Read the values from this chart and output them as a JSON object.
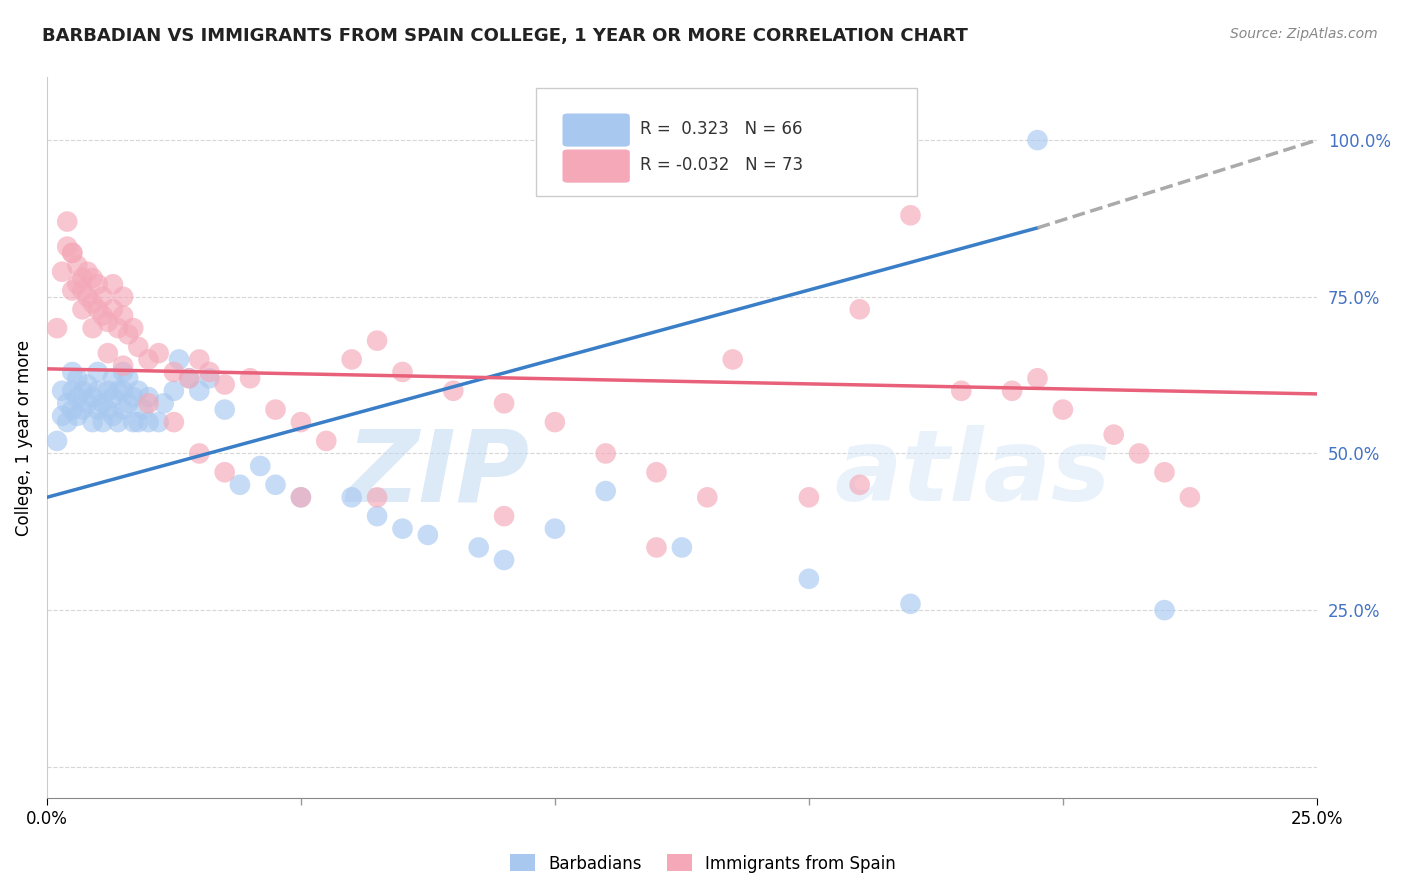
{
  "title": "BARBADIAN VS IMMIGRANTS FROM SPAIN COLLEGE, 1 YEAR OR MORE CORRELATION CHART",
  "source": "Source: ZipAtlas.com",
  "ylabel": "College, 1 year or more",
  "xlim": [
    0.0,
    0.25
  ],
  "ylim": [
    -0.05,
    1.1
  ],
  "yticks": [
    0.0,
    0.25,
    0.5,
    0.75,
    1.0
  ],
  "ytick_labels": [
    "",
    "25.0%",
    "50.0%",
    "75.0%",
    "100.0%"
  ],
  "blue_R": 0.323,
  "blue_N": 66,
  "pink_R": -0.032,
  "pink_N": 73,
  "blue_color": "#A8C8F0",
  "pink_color": "#F4A8B8",
  "blue_line_color": "#3A7EC8",
  "pink_line_color": "#E8607A",
  "dashed_color": "#AAAAAA",
  "legend_label_blue": "Barbadians",
  "legend_label_pink": "Immigrants from Spain",
  "watermark_zip": "ZIP",
  "watermark_atlas": "atlas",
  "blue_line_x0": 0.0,
  "blue_line_y0": 0.43,
  "blue_line_x1": 0.195,
  "blue_line_y1": 0.86,
  "blue_line_dash_x1": 0.25,
  "blue_line_dash_y1": 1.0,
  "pink_line_x0": 0.0,
  "pink_line_y0": 0.635,
  "pink_line_x1": 0.25,
  "pink_line_y1": 0.595,
  "blue_scatter_x": [
    0.002,
    0.003,
    0.003,
    0.004,
    0.004,
    0.005,
    0.005,
    0.005,
    0.006,
    0.006,
    0.006,
    0.007,
    0.007,
    0.008,
    0.008,
    0.009,
    0.009,
    0.01,
    0.01,
    0.01,
    0.011,
    0.011,
    0.012,
    0.012,
    0.013,
    0.013,
    0.013,
    0.014,
    0.014,
    0.015,
    0.015,
    0.015,
    0.016,
    0.016,
    0.017,
    0.017,
    0.018,
    0.018,
    0.019,
    0.02,
    0.02,
    0.022,
    0.023,
    0.025,
    0.026,
    0.028,
    0.03,
    0.032,
    0.035,
    0.038,
    0.042,
    0.045,
    0.05,
    0.06,
    0.065,
    0.07,
    0.075,
    0.085,
    0.09,
    0.1,
    0.11,
    0.125,
    0.15,
    0.17,
    0.195,
    0.22
  ],
  "blue_scatter_y": [
    0.52,
    0.56,
    0.6,
    0.55,
    0.58,
    0.57,
    0.6,
    0.63,
    0.56,
    0.59,
    0.62,
    0.57,
    0.6,
    0.58,
    0.61,
    0.55,
    0.59,
    0.57,
    0.6,
    0.63,
    0.55,
    0.58,
    0.57,
    0.6,
    0.56,
    0.59,
    0.62,
    0.55,
    0.6,
    0.57,
    0.6,
    0.63,
    0.58,
    0.62,
    0.55,
    0.59,
    0.55,
    0.6,
    0.57,
    0.55,
    0.59,
    0.55,
    0.58,
    0.6,
    0.65,
    0.62,
    0.6,
    0.62,
    0.57,
    0.45,
    0.48,
    0.45,
    0.43,
    0.43,
    0.4,
    0.38,
    0.37,
    0.35,
    0.33,
    0.38,
    0.44,
    0.35,
    0.3,
    0.26,
    1.0,
    0.25
  ],
  "pink_scatter_x": [
    0.002,
    0.003,
    0.004,
    0.004,
    0.005,
    0.005,
    0.006,
    0.006,
    0.007,
    0.007,
    0.008,
    0.008,
    0.009,
    0.009,
    0.01,
    0.01,
    0.011,
    0.011,
    0.012,
    0.013,
    0.013,
    0.014,
    0.015,
    0.015,
    0.016,
    0.017,
    0.018,
    0.02,
    0.022,
    0.025,
    0.028,
    0.03,
    0.032,
    0.035,
    0.04,
    0.045,
    0.05,
    0.055,
    0.06,
    0.065,
    0.07,
    0.08,
    0.09,
    0.1,
    0.11,
    0.12,
    0.13,
    0.135,
    0.15,
    0.16,
    0.17,
    0.18,
    0.19,
    0.195,
    0.2,
    0.21,
    0.215,
    0.22,
    0.225,
    0.005,
    0.007,
    0.009,
    0.012,
    0.015,
    0.02,
    0.025,
    0.03,
    0.035,
    0.05,
    0.065,
    0.09,
    0.12,
    0.16
  ],
  "pink_scatter_y": [
    0.7,
    0.79,
    0.83,
    0.87,
    0.76,
    0.82,
    0.77,
    0.8,
    0.73,
    0.78,
    0.75,
    0.79,
    0.74,
    0.78,
    0.73,
    0.77,
    0.72,
    0.75,
    0.71,
    0.73,
    0.77,
    0.7,
    0.72,
    0.75,
    0.69,
    0.7,
    0.67,
    0.65,
    0.66,
    0.63,
    0.62,
    0.65,
    0.63,
    0.61,
    0.62,
    0.57,
    0.55,
    0.52,
    0.65,
    0.68,
    0.63,
    0.6,
    0.58,
    0.55,
    0.5,
    0.47,
    0.43,
    0.65,
    0.43,
    0.45,
    0.88,
    0.6,
    0.6,
    0.62,
    0.57,
    0.53,
    0.5,
    0.47,
    0.43,
    0.82,
    0.76,
    0.7,
    0.66,
    0.64,
    0.58,
    0.55,
    0.5,
    0.47,
    0.43,
    0.43,
    0.4,
    0.35,
    0.73
  ]
}
